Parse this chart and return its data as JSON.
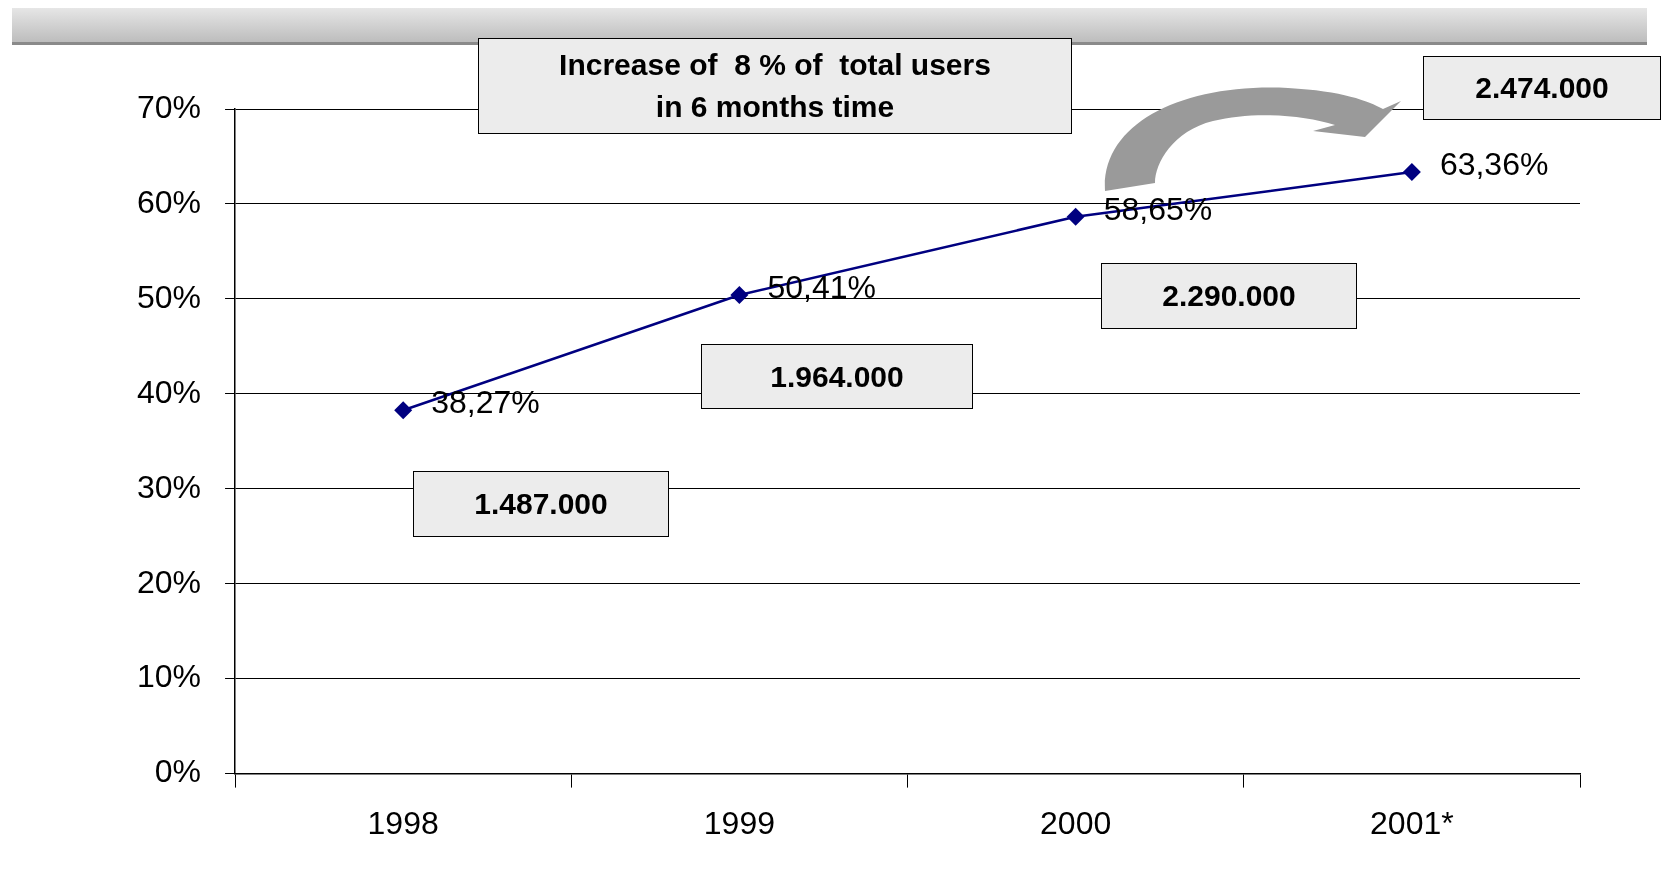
{
  "chart_data": {
    "type": "line",
    "categories": [
      "1998",
      "1999",
      "2000",
      "2001*"
    ],
    "series": [
      {
        "color": "#000080",
        "values": [
          38.27,
          50.41,
          58.65,
          63.36
        ],
        "value_labels": [
          "38,27%",
          "50,41%",
          "58,65%",
          "63,36%"
        ]
      }
    ],
    "ylim": [
      0,
      70
    ],
    "yticks": [
      {
        "value": 0,
        "label": "0%"
      },
      {
        "value": 10,
        "label": "10%"
      },
      {
        "value": 20,
        "label": "20%"
      },
      {
        "value": 30,
        "label": "30%"
      },
      {
        "value": 40,
        "label": "40%"
      },
      {
        "value": 50,
        "label": "50%"
      },
      {
        "value": 60,
        "label": "60%"
      },
      {
        "value": 70,
        "label": "70%"
      }
    ],
    "grid": "y",
    "marker": "diamond",
    "line_style": "solid",
    "legend": false,
    "annotations": [
      "Increase of  8 % of  total users in 6 months time",
      "1.487.000",
      "1.964.000",
      "2.290.000",
      "2.474.000"
    ]
  }
}
